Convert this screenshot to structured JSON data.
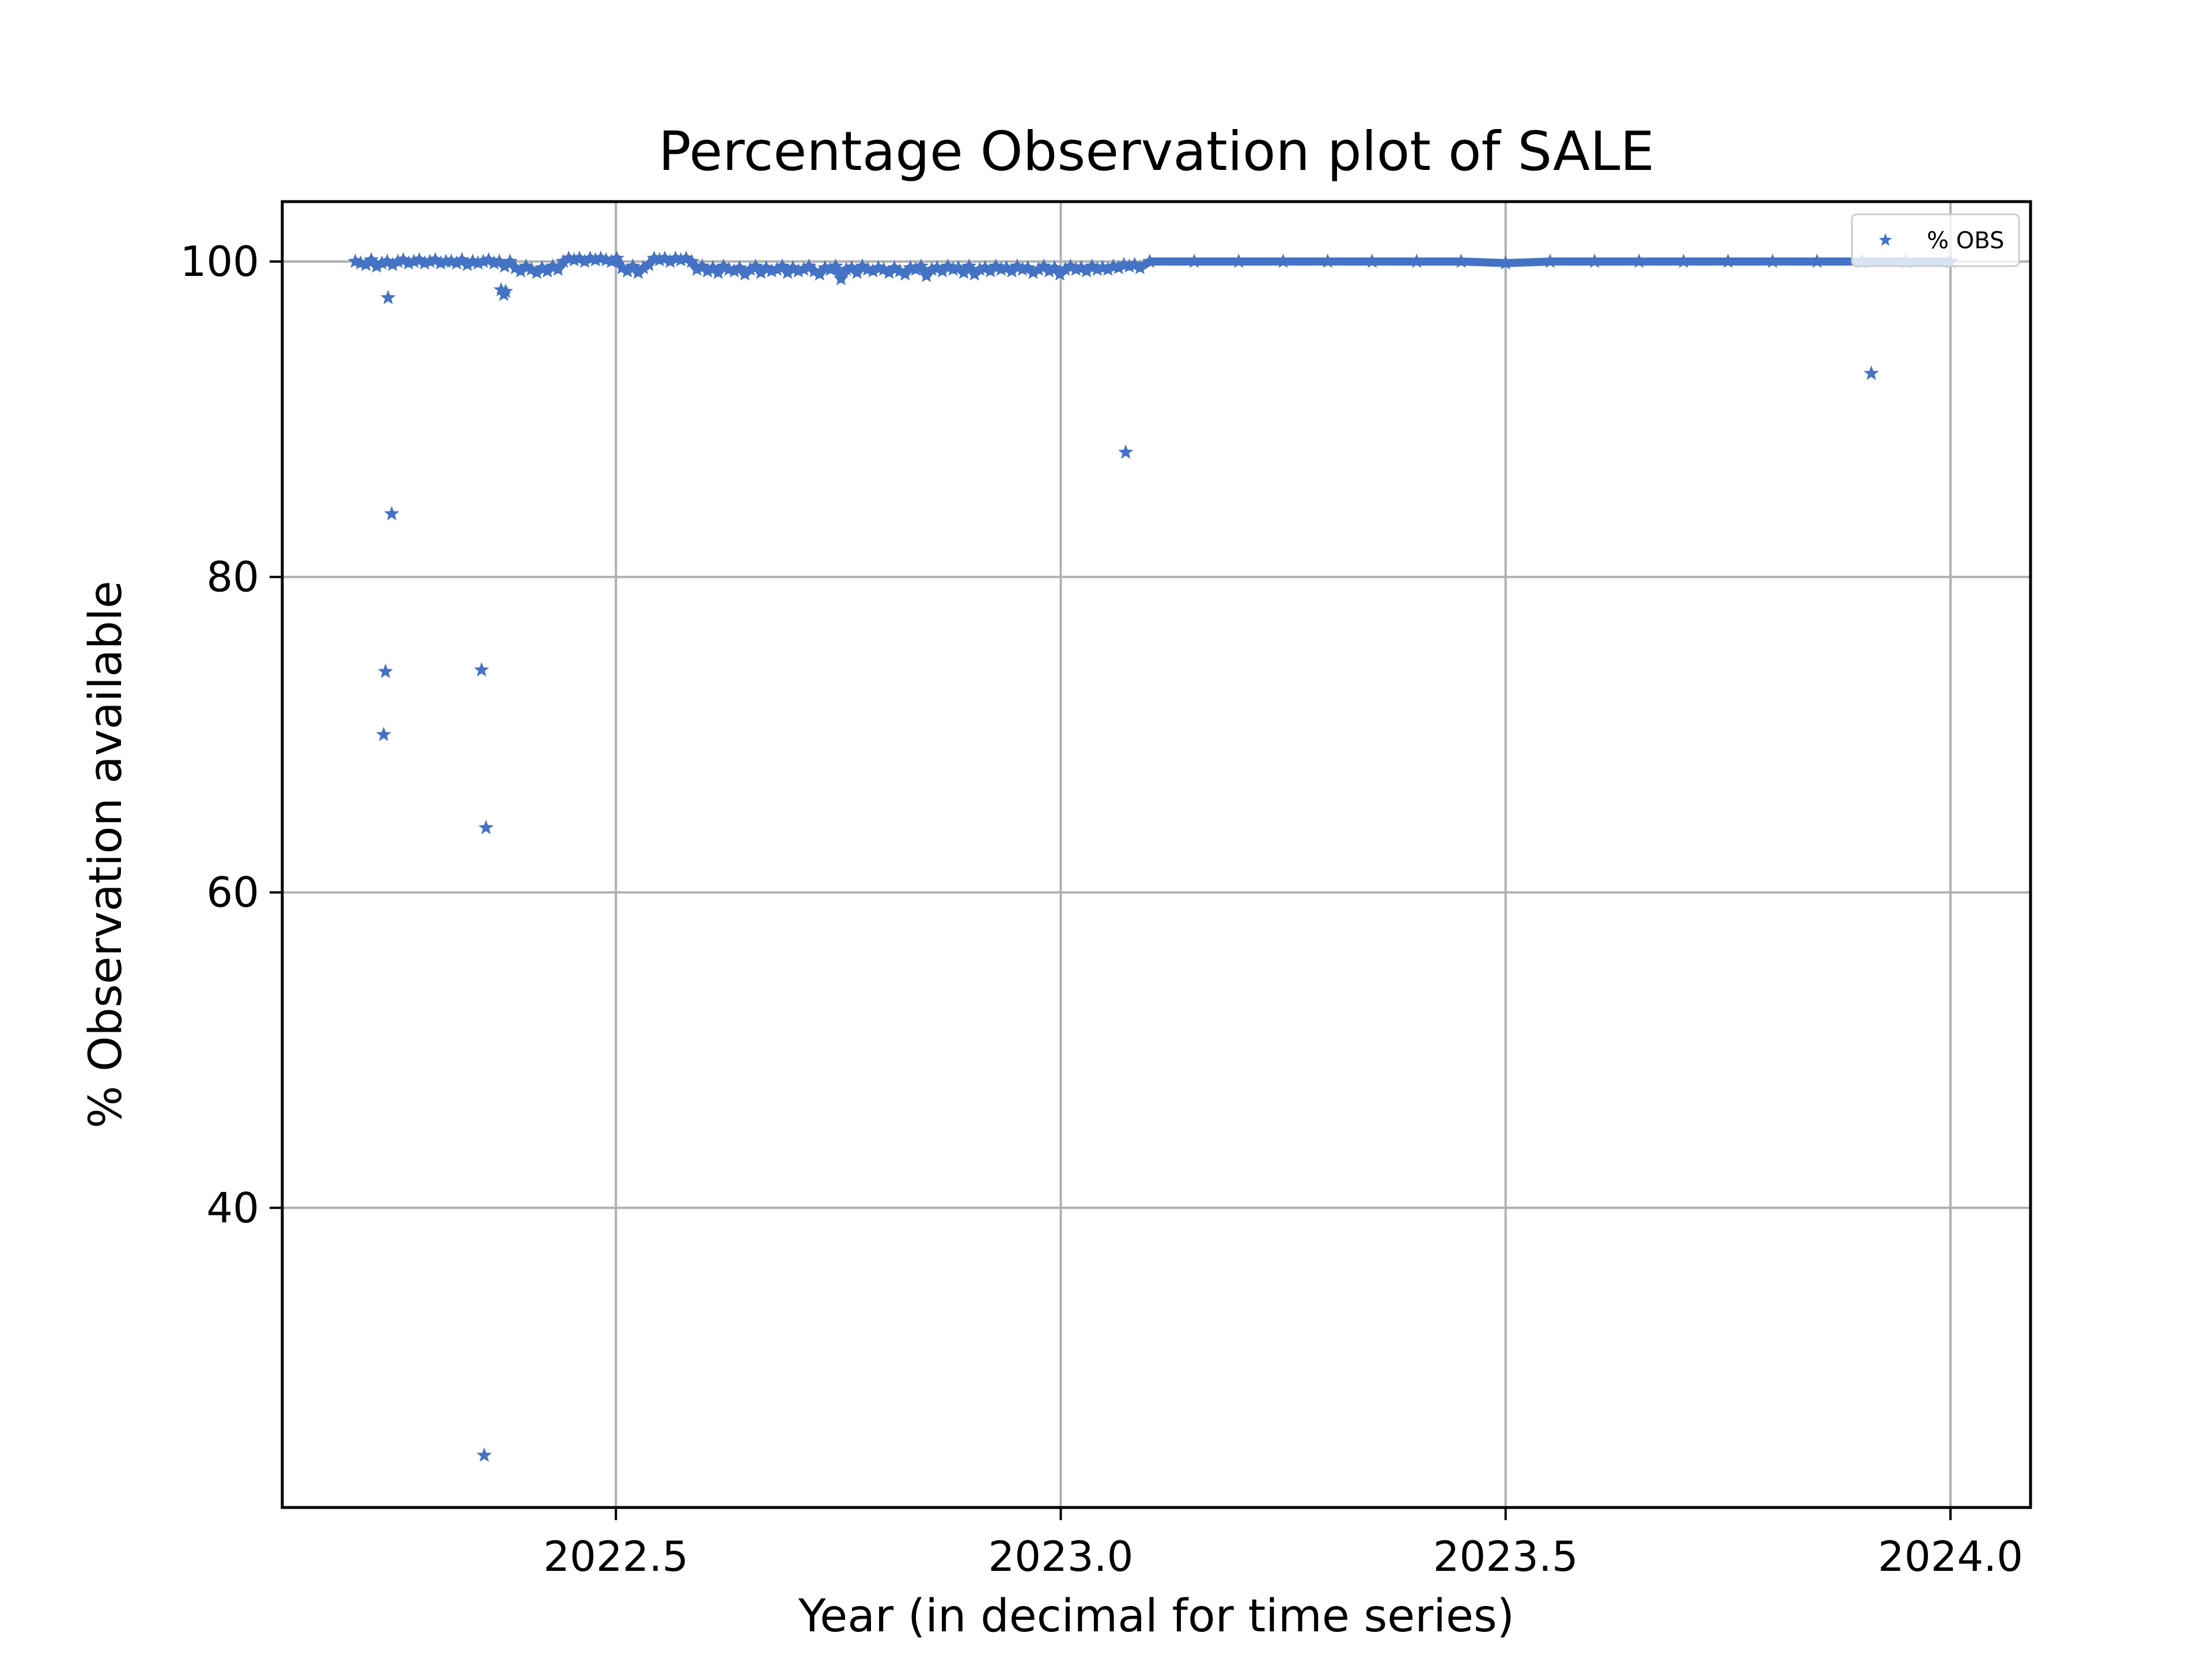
{
  "chart_data": {
    "type": "scatter",
    "title": "Percentage Observation plot of SALE",
    "xlabel": "Year (in decimal for time series)",
    "ylabel": "% Observation available",
    "xlim": [
      2022.125,
      2024.09
    ],
    "ylim": [
      21.0,
      103.8
    ],
    "xticks": [
      2022.5,
      2023.0,
      2023.5,
      2024.0
    ],
    "xtick_labels": [
      "2022.5",
      "2023.0",
      "2023.5",
      "2024.0"
    ],
    "yticks": [
      40,
      60,
      80,
      100
    ],
    "ytick_labels": [
      "40",
      "60",
      "80",
      "100"
    ],
    "grid": true,
    "legend": {
      "position": "top-right",
      "entries": [
        "% OBS"
      ]
    },
    "series": [
      {
        "name": "% OBS",
        "color": "#4472c4",
        "marker": "star",
        "x": [
          2022.207,
          2022.213,
          2022.219,
          2022.225,
          2022.231,
          2022.237,
          2022.243,
          2022.249,
          2022.255,
          2022.261,
          2022.267,
          2022.273,
          2022.279,
          2022.285,
          2022.291,
          2022.297,
          2022.303,
          2022.309,
          2022.315,
          2022.321,
          2022.327,
          2022.333,
          2022.339,
          2022.345,
          2022.351,
          2022.357,
          2022.363,
          2022.369,
          2022.375,
          2022.381,
          2022.387,
          2022.393,
          2022.399,
          2022.405,
          2022.411,
          2022.417,
          2022.423,
          2022.429,
          2022.435,
          2022.441,
          2022.447,
          2022.453,
          2022.459,
          2022.465,
          2022.471,
          2022.477,
          2022.483,
          2022.489,
          2022.495,
          2022.501,
          2022.507,
          2022.513,
          2022.519,
          2022.525,
          2022.531,
          2022.537,
          2022.543,
          2022.549,
          2022.555,
          2022.561,
          2022.567,
          2022.573,
          2022.579,
          2022.585,
          2022.591,
          2022.597,
          2022.603,
          2022.609,
          2022.615,
          2022.621,
          2022.627,
          2022.633,
          2022.639,
          2022.645,
          2022.651,
          2022.657,
          2022.663,
          2022.669,
          2022.675,
          2022.681,
          2022.687,
          2022.693,
          2022.699,
          2022.705,
          2022.711,
          2022.717,
          2022.723,
          2022.729,
          2022.735,
          2022.741,
          2022.747,
          2022.753,
          2022.759,
          2022.765,
          2022.771,
          2022.777,
          2022.783,
          2022.789,
          2022.795,
          2022.801,
          2022.807,
          2022.813,
          2022.819,
          2022.825,
          2022.831,
          2022.837,
          2022.843,
          2022.849,
          2022.855,
          2022.861,
          2022.867,
          2022.873,
          2022.879,
          2022.885,
          2022.891,
          2022.897,
          2022.903,
          2022.909,
          2022.915,
          2022.921,
          2022.927,
          2022.933,
          2022.939,
          2022.945,
          2022.951,
          2022.957,
          2022.963,
          2022.969,
          2022.975,
          2022.981,
          2022.987,
          2022.993,
          2022.999,
          2023.005,
          2023.011,
          2023.017,
          2023.023,
          2023.029,
          2023.035,
          2023.041,
          2023.047,
          2023.053,
          2023.059,
          2023.065,
          2023.071,
          2023.077,
          2023.083,
          2023.089,
          2023.1,
          2023.15,
          2023.2,
          2023.25,
          2023.3,
          2023.35,
          2023.4,
          2023.45,
          2023.5,
          2023.55,
          2023.6,
          2023.65,
          2023.7,
          2023.75,
          2023.8,
          2023.85,
          2023.9,
          2023.95,
          2024.0,
          2022.244,
          2022.248,
          2022.241,
          2022.239,
          2022.349,
          2022.352,
          2022.354,
          2022.371,
          2022.374,
          2022.376,
          2023.073,
          2023.911
        ],
        "y": [
          100.0,
          99.9,
          99.8,
          100.1,
          99.7,
          99.9,
          100.0,
          99.8,
          100.0,
          100.1,
          99.9,
          100.0,
          100.1,
          99.9,
          100.0,
          100.1,
          99.9,
          100.0,
          100.0,
          99.9,
          100.1,
          99.8,
          100.0,
          99.9,
          100.0,
          100.1,
          99.9,
          100.0,
          99.7,
          100.0,
          99.6,
          99.4,
          99.7,
          99.5,
          99.3,
          99.6,
          99.4,
          99.7,
          99.5,
          100.0,
          100.2,
          100.1,
          100.2,
          100.0,
          100.2,
          100.1,
          100.2,
          100.1,
          100.0,
          100.2,
          99.6,
          99.4,
          99.7,
          99.3,
          99.6,
          99.8,
          100.2,
          100.1,
          100.2,
          100.0,
          100.2,
          100.1,
          100.2,
          100.0,
          99.5,
          99.7,
          99.4,
          99.6,
          99.3,
          99.7,
          99.5,
          99.4,
          99.6,
          99.2,
          99.5,
          99.7,
          99.3,
          99.6,
          99.4,
          99.5,
          99.7,
          99.3,
          99.6,
          99.4,
          99.5,
          99.7,
          99.4,
          99.2,
          99.6,
          99.5,
          99.7,
          98.9,
          99.5,
          99.6,
          99.3,
          99.7,
          99.5,
          99.4,
          99.6,
          99.5,
          99.3,
          99.6,
          99.4,
          99.2,
          99.6,
          99.5,
          99.7,
          99.1,
          99.5,
          99.6,
          99.4,
          99.7,
          99.5,
          99.6,
          99.3,
          99.7,
          99.2,
          99.5,
          99.6,
          99.4,
          99.7,
          99.5,
          99.6,
          99.4,
          99.7,
          99.5,
          99.6,
          99.3,
          99.5,
          99.7,
          99.4,
          99.6,
          99.2,
          99.5,
          99.7,
          99.5,
          99.6,
          99.4,
          99.7,
          99.5,
          99.6,
          99.5,
          99.7,
          99.6,
          99.8,
          99.7,
          99.8,
          99.6,
          100.0,
          100.0,
          100.0,
          100.0,
          100.0,
          100.0,
          100.0,
          100.0,
          99.9,
          100.0,
          100.0,
          100.0,
          100.0,
          100.0,
          100.0,
          100.0,
          100.0,
          100.0,
          100.0,
          97.7,
          84.0,
          74.0,
          70.0,
          74.1,
          24.3,
          64.1,
          98.2,
          97.9,
          98.1,
          87.9,
          92.9
        ]
      }
    ]
  }
}
